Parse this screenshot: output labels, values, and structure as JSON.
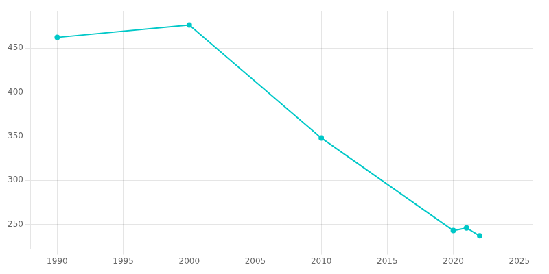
{
  "chart_data": {
    "type": "line",
    "x": [
      1990,
      2000,
      2010,
      2020,
      2021,
      2022
    ],
    "values": [
      462,
      476,
      348,
      243,
      246,
      237
    ],
    "color": "#00C8C8",
    "marker": "circle",
    "xlim": [
      1988,
      2026
    ],
    "ylim": [
      222,
      492
    ],
    "xticks": [
      1990,
      1995,
      2000,
      2005,
      2010,
      2015,
      2020,
      2025
    ],
    "yticks": [
      250,
      300,
      350,
      400,
      450
    ],
    "grid": true
  }
}
